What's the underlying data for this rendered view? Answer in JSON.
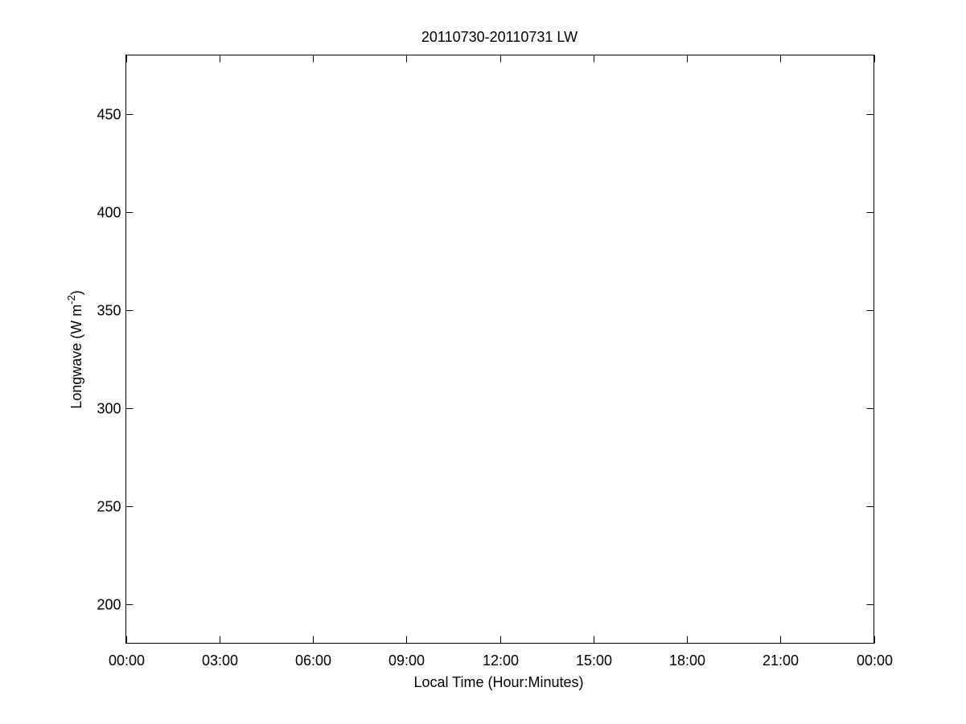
{
  "chart_data": {
    "type": "line",
    "title": "20110730-20110731 LW",
    "xlabel": "Local Time (Hour:Minutes)",
    "ylabel": "Longwave (W m",
    "ylabel_superscript": "-2",
    "ylabel_close": ")",
    "xlim_hours": [
      0,
      24
    ],
    "ylim": [
      180,
      480
    ],
    "x_ticks": [
      "00:00",
      "03:00",
      "06:00",
      "09:00",
      "12:00",
      "15:00",
      "18:00",
      "21:00",
      "00:00"
    ],
    "y_ticks": [
      200,
      250,
      300,
      350,
      400,
      450
    ],
    "grid": false,
    "series": []
  }
}
